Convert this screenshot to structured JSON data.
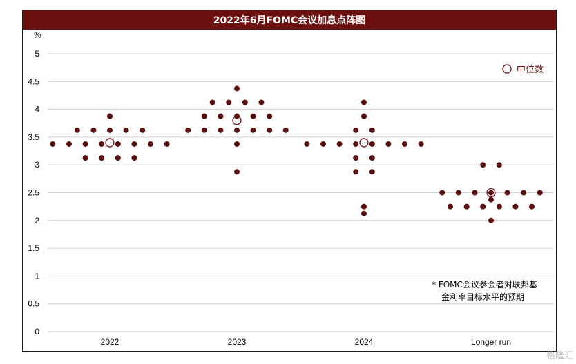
{
  "chart_data": {
    "type": "scatter",
    "title": "2022年6月FOMC会议加息点阵图",
    "ylabel": "%",
    "ylim": [
      0,
      5
    ],
    "yticks": [
      "0",
      "0.5",
      "1",
      "1.5",
      "2",
      "2.5",
      "3",
      "3.5",
      "4",
      "4.5",
      "5"
    ],
    "categories": [
      "2022",
      "2023",
      "2024",
      "Longer run"
    ],
    "grid": true,
    "legend": {
      "label": "中位数",
      "position": "top-right"
    },
    "note": [
      "*  FOMC会议参会者对联邦基",
      "金利率目标水平的预期"
    ],
    "colors": {
      "dots": "#5a0f0f",
      "title_bg": "#6b0f0f"
    },
    "medians": [
      3.4,
      3.8,
      3.4,
      2.5
    ],
    "rows": [
      {
        "category": "2022",
        "rows": [
          {
            "rate": 3.875,
            "count": 1
          },
          {
            "rate": 3.625,
            "count": 5
          },
          {
            "rate": 3.375,
            "count": 8
          },
          {
            "rate": 3.125,
            "count": 4
          }
        ]
      },
      {
        "category": "2023",
        "rows": [
          {
            "rate": 4.375,
            "count": 1
          },
          {
            "rate": 4.125,
            "count": 4
          },
          {
            "rate": 3.875,
            "count": 5
          },
          {
            "rate": 3.625,
            "count": 7
          },
          {
            "rate": 3.375,
            "count": 1
          },
          {
            "rate": 2.875,
            "count": 1
          }
        ]
      },
      {
        "category": "2024",
        "rows": [
          {
            "rate": 4.125,
            "count": 1
          },
          {
            "rate": 3.875,
            "count": 1
          },
          {
            "rate": 3.625,
            "count": 2
          },
          {
            "rate": 3.375,
            "count": 8
          },
          {
            "rate": 3.125,
            "count": 2
          },
          {
            "rate": 2.875,
            "count": 2
          },
          {
            "rate": 2.25,
            "count": 1
          },
          {
            "rate": 2.125,
            "count": 1
          }
        ]
      },
      {
        "category": "Longer run",
        "rows": [
          {
            "rate": 3.0,
            "count": 2
          },
          {
            "rate": 2.5,
            "count": 7
          },
          {
            "rate": 2.375,
            "count": 1
          },
          {
            "rate": 2.25,
            "count": 6
          },
          {
            "rate": 2.0,
            "count": 1
          }
        ]
      }
    ]
  },
  "watermark": "格隆汇"
}
